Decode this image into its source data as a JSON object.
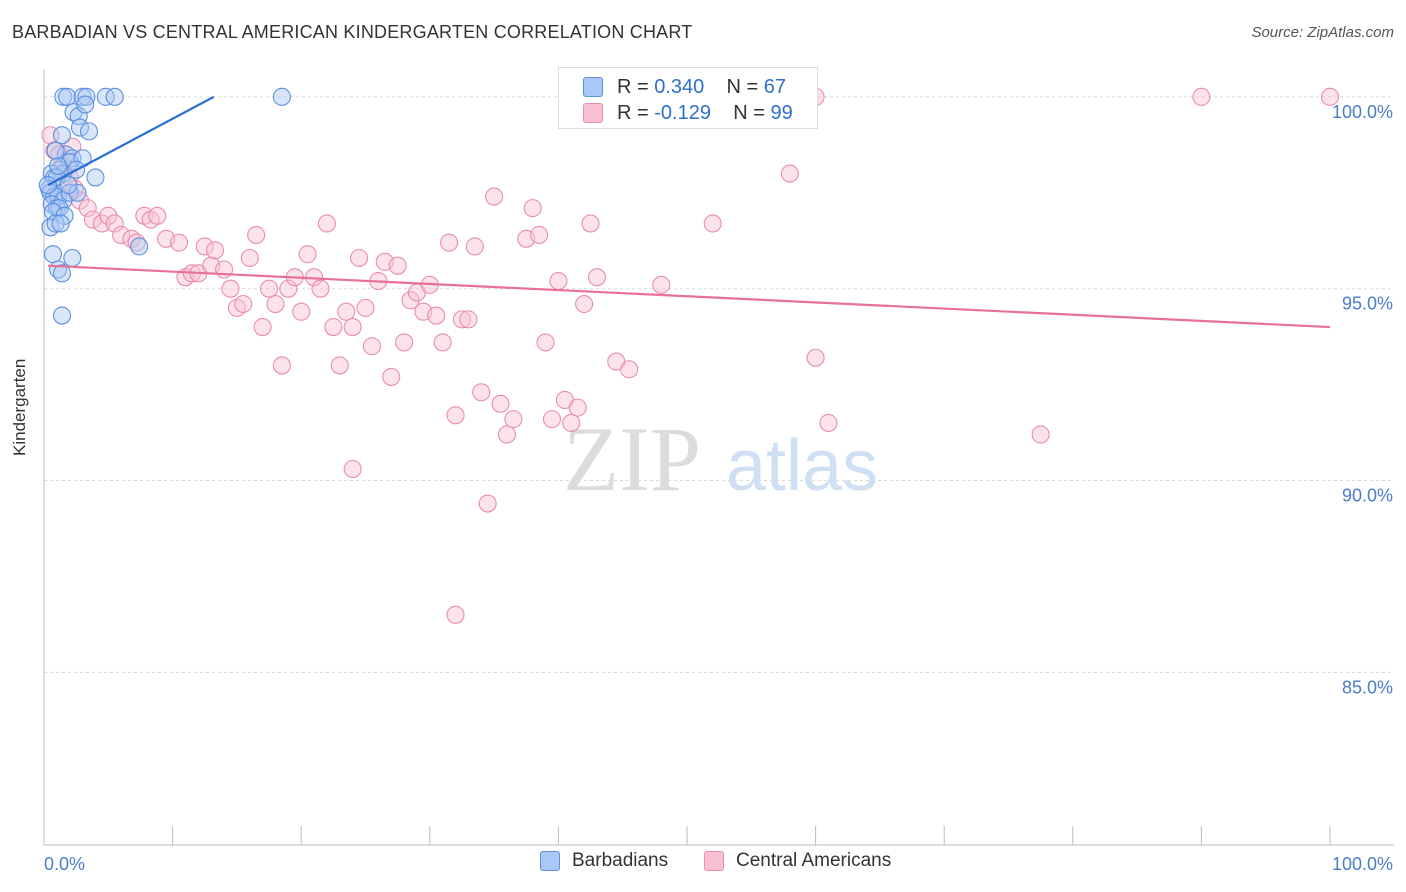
{
  "header": {
    "title": "BARBADIAN VS CENTRAL AMERICAN KINDERGARTEN CORRELATION CHART",
    "source": "Source: ZipAtlas.com"
  },
  "watermark": {
    "zip": "ZIP",
    "atlas": "atlas"
  },
  "legend_top": {
    "r_label": "R = ",
    "n_label": "N = ",
    "rows": [
      {
        "r": "0.340",
        "n": "67",
        "fill": "#aac8f5",
        "stroke": "#5b8fe0"
      },
      {
        "r": "-0.129",
        "n": "99",
        "fill": "#f9c0d3",
        "stroke": "#e98cb0"
      }
    ]
  },
  "bottom_legend": [
    {
      "label": "Barbadians",
      "fill": "#aac8f5",
      "stroke": "#5b8fe0"
    },
    {
      "label": "Central Americans",
      "fill": "#f9c0d3",
      "stroke": "#e98cb0"
    }
  ],
  "colors": {
    "blue_line": "#2a6fd6",
    "pink_line": "#e8709a",
    "tick_text": "#4a7cc8",
    "grid": "#d8d8d8"
  },
  "chart_data": {
    "type": "scatter",
    "title": "BARBADIAN VS CENTRAL AMERICAN KINDERGARTEN CORRELATION CHART",
    "xlabel": "",
    "ylabel": "Kindergarten",
    "xlim": [
      0,
      100
    ],
    "ylim": [
      80.5,
      100.7
    ],
    "x_tick_labels": [
      "0.0%",
      "100.0%"
    ],
    "y_ticks": [
      85,
      90,
      95,
      100
    ],
    "y_tick_labels": [
      "85.0%",
      "90.0%",
      "95.0%",
      "100.0%"
    ],
    "grid": true,
    "series": [
      {
        "name": "Barbadians",
        "points": [
          [
            1.5,
            100
          ],
          [
            1.8,
            100
          ],
          [
            3.0,
            100
          ],
          [
            3.3,
            100
          ],
          [
            4.8,
            100
          ],
          [
            5.5,
            100
          ],
          [
            18.5,
            100
          ],
          [
            2.3,
            99.6
          ],
          [
            2.7,
            99.5
          ],
          [
            3.2,
            99.8
          ],
          [
            2.8,
            99.2
          ],
          [
            3.5,
            99.1
          ],
          [
            1.4,
            99.0
          ],
          [
            1.7,
            98.5
          ],
          [
            2.2,
            98.4
          ],
          [
            2.0,
            98.3
          ],
          [
            3.0,
            98.4
          ],
          [
            1.2,
            98.1
          ],
          [
            1.5,
            98.0
          ],
          [
            0.6,
            98.0
          ],
          [
            0.8,
            97.9
          ],
          [
            1.0,
            97.9
          ],
          [
            1.1,
            98.2
          ],
          [
            2.5,
            98.1
          ],
          [
            4.0,
            97.9
          ],
          [
            0.4,
            97.6
          ],
          [
            0.5,
            97.5
          ],
          [
            0.8,
            97.4
          ],
          [
            1.1,
            97.4
          ],
          [
            1.5,
            97.3
          ],
          [
            2.0,
            97.5
          ],
          [
            2.6,
            97.5
          ],
          [
            0.6,
            97.2
          ],
          [
            1.0,
            97.1
          ],
          [
            1.2,
            97.1
          ],
          [
            0.7,
            97.0
          ],
          [
            1.6,
            96.9
          ],
          [
            0.5,
            96.6
          ],
          [
            0.9,
            96.7
          ],
          [
            1.3,
            96.7
          ],
          [
            7.4,
            96.1
          ],
          [
            0.7,
            95.9
          ],
          [
            2.2,
            95.8
          ],
          [
            1.1,
            95.5
          ],
          [
            1.4,
            95.4
          ],
          [
            1.4,
            94.3
          ],
          [
            0.3,
            97.7
          ],
          [
            0.9,
            98.6
          ],
          [
            1.9,
            97.7
          ]
        ]
      },
      {
        "name": "Central Americans",
        "points": [
          [
            60,
            100
          ],
          [
            90,
            100
          ],
          [
            100,
            100
          ],
          [
            0.5,
            99
          ],
          [
            0.8,
            98.6
          ],
          [
            1.2,
            98.5
          ],
          [
            1.5,
            98.2
          ],
          [
            2.0,
            97.9
          ],
          [
            2.4,
            97.6
          ],
          [
            2.8,
            97.3
          ],
          [
            3.4,
            97.1
          ],
          [
            3.8,
            96.8
          ],
          [
            4.5,
            96.7
          ],
          [
            5.0,
            96.9
          ],
          [
            5.5,
            96.7
          ],
          [
            6.0,
            96.4
          ],
          [
            6.8,
            96.3
          ],
          [
            7.2,
            96.2
          ],
          [
            7.8,
            96.9
          ],
          [
            8.3,
            96.8
          ],
          [
            8.8,
            96.9
          ],
          [
            9.5,
            96.3
          ],
          [
            10.5,
            96.2
          ],
          [
            11.0,
            95.3
          ],
          [
            11.5,
            95.4
          ],
          [
            12.0,
            95.4
          ],
          [
            12.5,
            96.1
          ],
          [
            13.0,
            95.6
          ],
          [
            13.3,
            96.0
          ],
          [
            14.0,
            95.5
          ],
          [
            14.5,
            95.0
          ],
          [
            15.0,
            94.5
          ],
          [
            15.5,
            94.6
          ],
          [
            16.0,
            95.8
          ],
          [
            16.5,
            96.4
          ],
          [
            17.0,
            94.0
          ],
          [
            17.5,
            95.0
          ],
          [
            18.0,
            94.6
          ],
          [
            18.5,
            93.0
          ],
          [
            19.0,
            95.0
          ],
          [
            19.5,
            95.3
          ],
          [
            20.0,
            94.4
          ],
          [
            20.5,
            95.9
          ],
          [
            21.0,
            95.3
          ],
          [
            21.5,
            95.0
          ],
          [
            22.0,
            96.7
          ],
          [
            22.5,
            94.0
          ],
          [
            23.0,
            93.0
          ],
          [
            23.5,
            94.4
          ],
          [
            24.0,
            94.0
          ],
          [
            24.5,
            95.8
          ],
          [
            25.0,
            94.5
          ],
          [
            25.5,
            93.5
          ],
          [
            26.0,
            95.2
          ],
          [
            26.5,
            95.7
          ],
          [
            27.0,
            92.7
          ],
          [
            27.5,
            95.6
          ],
          [
            28.0,
            93.6
          ],
          [
            28.5,
            94.7
          ],
          [
            29.0,
            94.9
          ],
          [
            29.5,
            94.4
          ],
          [
            30.0,
            95.1
          ],
          [
            30.5,
            94.3
          ],
          [
            31.0,
            93.6
          ],
          [
            31.5,
            96.2
          ],
          [
            32.0,
            91.7
          ],
          [
            32.5,
            94.2
          ],
          [
            33.0,
            94.2
          ],
          [
            33.5,
            96.1
          ],
          [
            34.0,
            92.3
          ],
          [
            34.5,
            89.4
          ],
          [
            35.0,
            97.4
          ],
          [
            35.5,
            92.0
          ],
          [
            36.0,
            91.2
          ],
          [
            36.5,
            91.6
          ],
          [
            37.5,
            96.3
          ],
          [
            38.0,
            97.1
          ],
          [
            38.5,
            96.4
          ],
          [
            39.0,
            93.6
          ],
          [
            39.5,
            91.6
          ],
          [
            40.0,
            95.2
          ],
          [
            40.5,
            92.1
          ],
          [
            41.0,
            91.5
          ],
          [
            41.5,
            91.9
          ],
          [
            42.0,
            94.6
          ],
          [
            42.5,
            96.7
          ],
          [
            43.0,
            95.3
          ],
          [
            44.5,
            93.1
          ],
          [
            45.5,
            92.9
          ],
          [
            48.0,
            95.1
          ],
          [
            52.0,
            96.7
          ],
          [
            58.0,
            98.0
          ],
          [
            60.0,
            93.2
          ],
          [
            61.0,
            91.5
          ],
          [
            77.5,
            91.2
          ],
          [
            32.0,
            86.5
          ],
          [
            24.0,
            90.3
          ],
          [
            1.0,
            97.5
          ],
          [
            2.2,
            98.7
          ]
        ]
      }
    ],
    "trendlines": [
      {
        "series": "Barbadians",
        "from": [
          0.3,
          97.7
        ],
        "to": [
          13.2,
          100.0
        ]
      },
      {
        "series": "Central Americans",
        "from": [
          0.3,
          95.6
        ],
        "to": [
          100,
          94.0
        ]
      }
    ]
  }
}
